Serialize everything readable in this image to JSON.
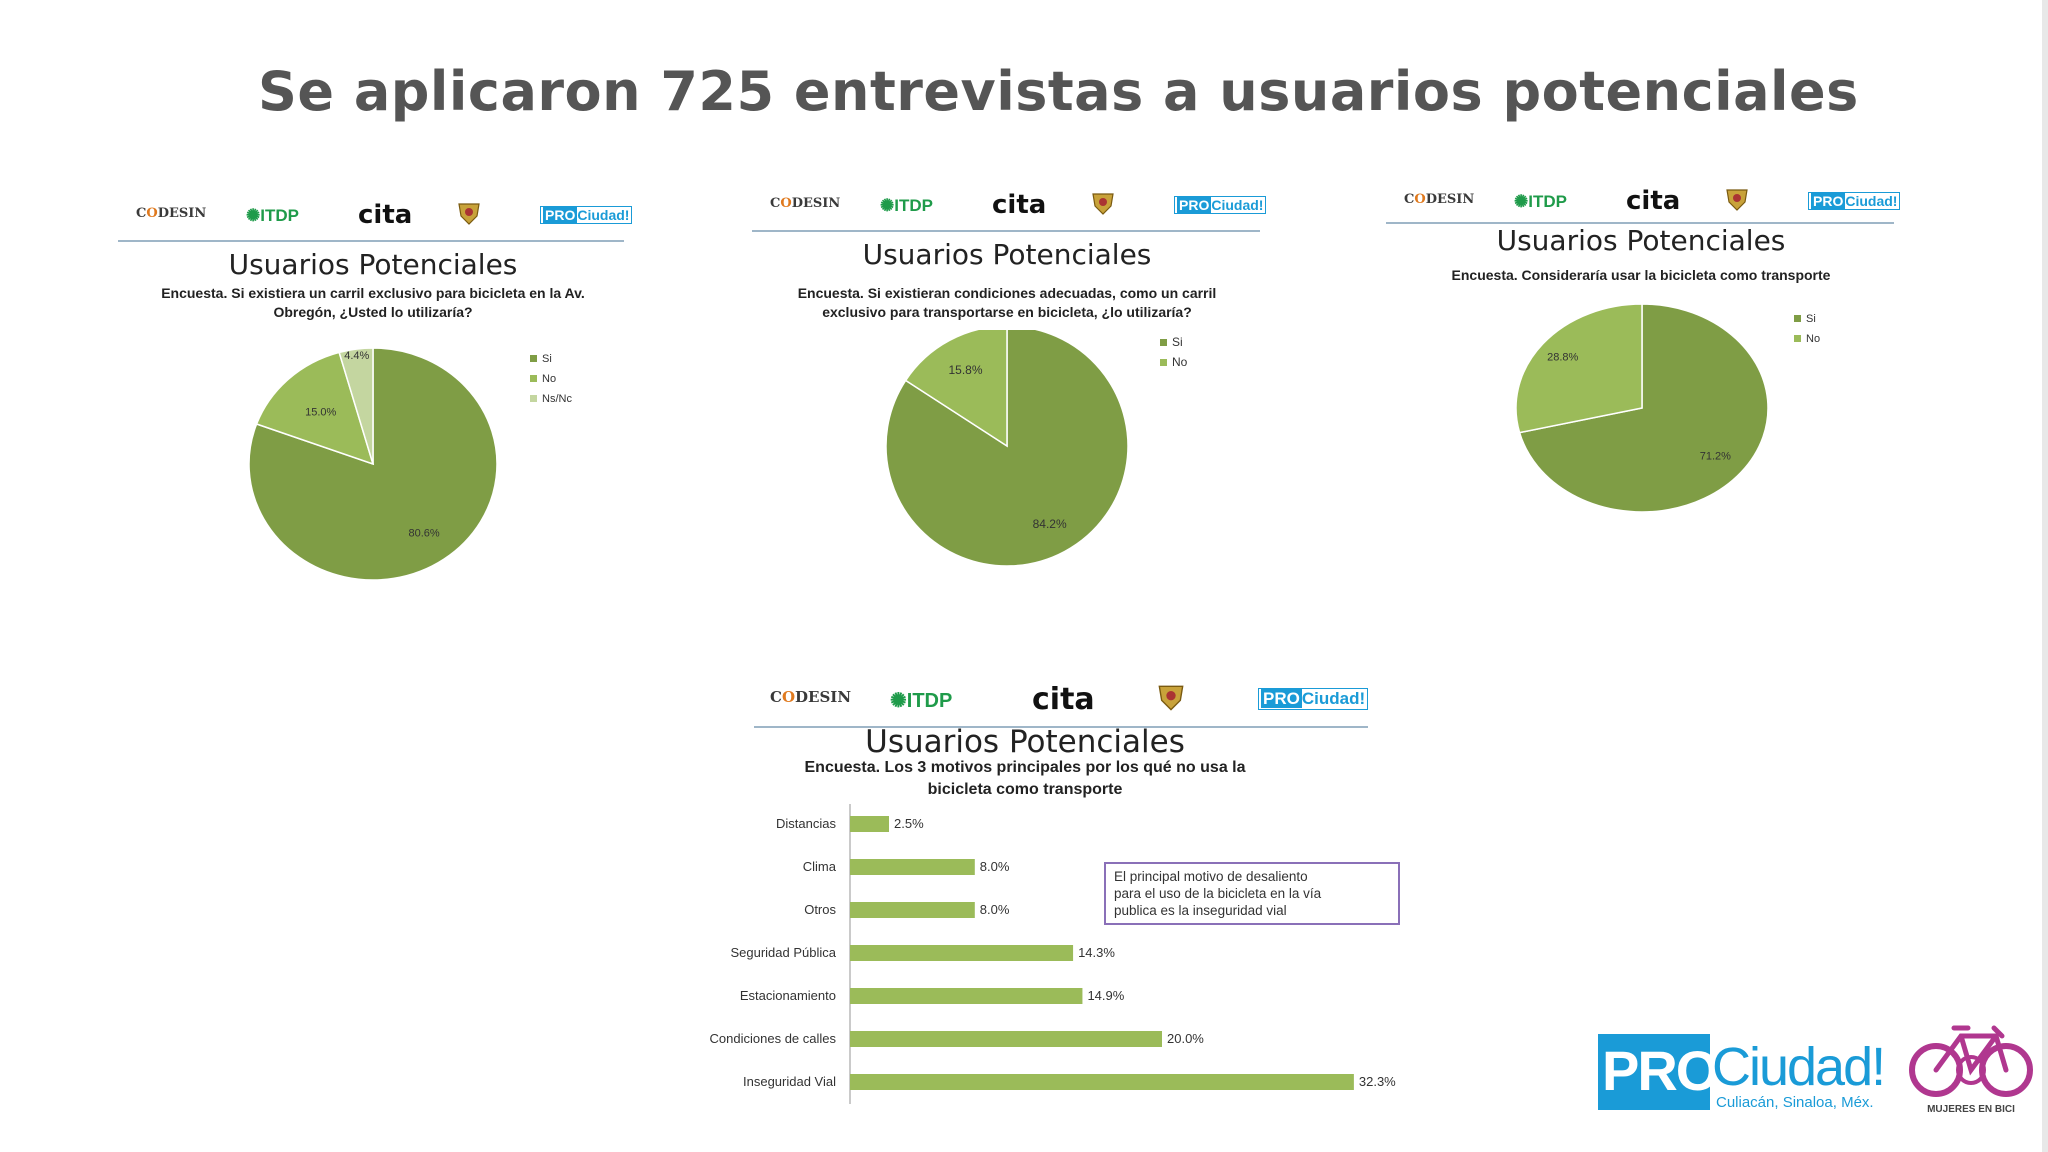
{
  "slide": {
    "title": "Se aplicaron 725 entrevistas a usuarios potenciales"
  },
  "logos": {
    "codesin_a": "C",
    "codesin_o": "O",
    "codesin_b": "DESIN",
    "itdp": "ITDP",
    "cita": "cita",
    "pro": "PRO",
    "ciudad": "Ciudad!"
  },
  "colors": {
    "si": "#7f9d45",
    "no": "#9bbb59",
    "nsnc": "#c4d6a0",
    "bar": "#9bbb59",
    "note_border": "#8a70b8",
    "pro_blue": "#1a9bd7",
    "bici_purple": "#b0378f"
  },
  "chart_data": [
    {
      "type": "pie",
      "title": "Usuarios Potenciales",
      "subtitle_1": "Encuesta. Si existiera un carril exclusivo para bicicleta en la Av.",
      "subtitle_2": "Obregón, ¿Usted lo utilizaría?",
      "legend_position": "right",
      "slices": [
        {
          "label": "Si",
          "value": 80.6,
          "text": "80.6%"
        },
        {
          "label": "No",
          "value": 15.0,
          "text": "15.0%"
        },
        {
          "label": "Ns/Nc",
          "value": 4.4,
          "text": "4.4%"
        }
      ]
    },
    {
      "type": "pie",
      "title": "Usuarios Potenciales",
      "subtitle_1": "Encuesta. Si existieran condiciones adecuadas, como un carril",
      "subtitle_2": "exclusivo para transportarse en bicicleta, ¿lo utilizaría?",
      "legend_position": "right",
      "slices": [
        {
          "label": "Si",
          "value": 84.2,
          "text": "84.2%"
        },
        {
          "label": "No",
          "value": 15.8,
          "text": "15.8%"
        }
      ]
    },
    {
      "type": "pie",
      "title": "Usuarios Potenciales",
      "subtitle_1": "Encuesta. Consideraría usar la bicicleta como transporte",
      "subtitle_2": "",
      "legend_position": "right",
      "slices": [
        {
          "label": "Si",
          "value": 71.2,
          "text": "71.2%"
        },
        {
          "label": "No",
          "value": 28.8,
          "text": "28.8%"
        }
      ]
    },
    {
      "type": "bar",
      "orientation": "horizontal",
      "title": "Usuarios Potenciales",
      "subtitle_1": "Encuesta. Los 3 motivos principales por los qué no usa la",
      "subtitle_2": "bicicleta como transporte",
      "categories": [
        "Distancias",
        "Clima",
        "Otros",
        "Seguridad Pública",
        "Estacionamiento",
        "Condiciones de calles",
        "Inseguridad Vial"
      ],
      "values": [
        2.5,
        8.0,
        8.0,
        14.3,
        14.9,
        20.0,
        32.3
      ],
      "value_labels": [
        "2.5%",
        "8.0%",
        "8.0%",
        "14.3%",
        "14.9%",
        "20.0%",
        "32.3%"
      ],
      "xlim": [
        0,
        35
      ],
      "note": [
        "El principal motivo de desaliento",
        "para el uso de la bicicleta en la vía",
        "publica es la inseguridad vial"
      ]
    }
  ],
  "brand": {
    "pro": "PRO",
    "ciudad": "Ciudad!",
    "place": "Culiacán, Sinaloa, Méx.",
    "bici": "MUJERES EN BICI"
  }
}
